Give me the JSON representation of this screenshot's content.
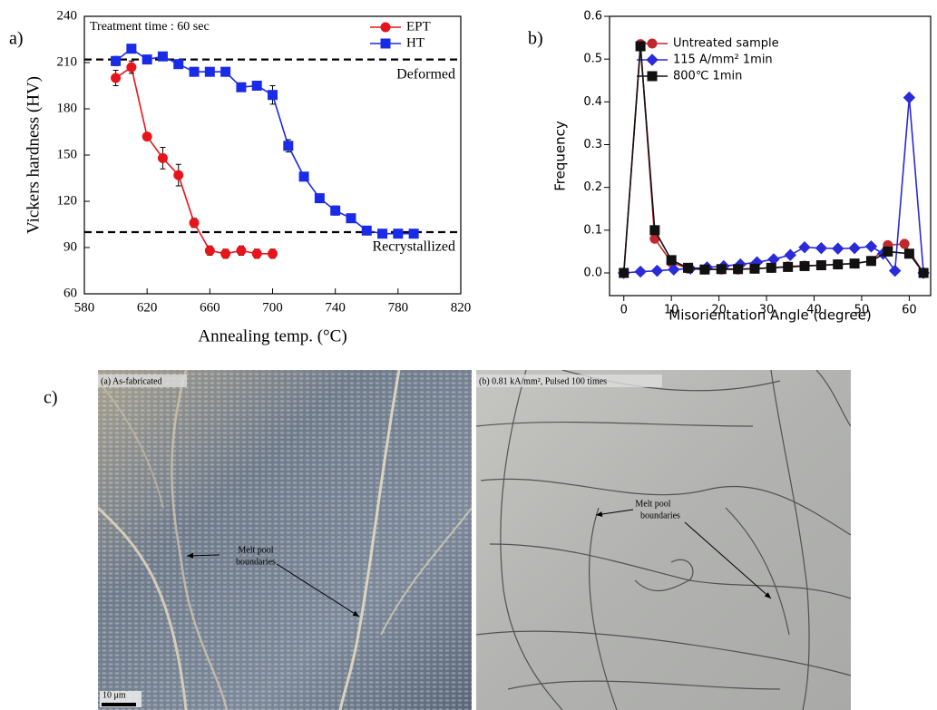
{
  "panel_labels": [
    "a)",
    "b)",
    "c)"
  ],
  "chart_data": [
    {
      "type": "line",
      "annotation": "Treatment time : 60 sec",
      "x_label": "Annealing temp. (°C)",
      "y_label": "Vickers hardness (HV)",
      "xlim": [
        580,
        820
      ],
      "xticks": [
        580,
        620,
        660,
        700,
        740,
        780,
        820
      ],
      "ylim": [
        60,
        240
      ],
      "yticks": [
        60,
        90,
        120,
        150,
        180,
        210,
        240
      ],
      "legend": "upper right",
      "reference_lines": [
        {
          "value": 212,
          "label": "Deformed"
        },
        {
          "value": 100,
          "label": "Recrystallized"
        }
      ],
      "series": [
        {
          "name": "EPT",
          "color": "#e8141b",
          "marker": "circle",
          "x": [
            600,
            610,
            620,
            630,
            640,
            650,
            660,
            670,
            680,
            690,
            700
          ],
          "values": [
            200,
            207,
            162,
            148,
            137,
            106,
            88,
            86,
            88,
            86,
            86
          ],
          "errors": [
            5,
            4,
            2,
            7,
            7,
            3,
            3,
            3,
            3,
            3,
            3
          ]
        },
        {
          "name": "HT",
          "color": "#1a2be8",
          "marker": "square",
          "x": [
            600,
            610,
            620,
            630,
            640,
            650,
            660,
            670,
            680,
            690,
            700,
            710,
            720,
            730,
            740,
            750,
            760,
            770,
            780,
            790
          ],
          "values": [
            211,
            219,
            212,
            214,
            209,
            204,
            204,
            204,
            194,
            195,
            189,
            156,
            136,
            122,
            114,
            109,
            101,
            99,
            99,
            99
          ],
          "errors": [
            3,
            2,
            2,
            2,
            2,
            2,
            2,
            2,
            2,
            2,
            6,
            4,
            2,
            2,
            3,
            2,
            2,
            2,
            2,
            2
          ]
        }
      ]
    },
    {
      "type": "line",
      "x_label": "Misorientation Angle (degree)",
      "y_label": "Frequency",
      "xlim": [
        -3,
        64.5
      ],
      "xticks": [
        0,
        10,
        20,
        30,
        40,
        50,
        60
      ],
      "ylim": [
        -0.053,
        0.6
      ],
      "yticks": [
        {
          "value": 0,
          "label": "0.0"
        },
        0.1,
        0.2,
        0.3,
        0.4,
        0.5,
        0.6
      ],
      "legend": "upper left",
      "series": [
        {
          "name": "Untreated sample",
          "color": "#c0282d",
          "marker": "circle",
          "x": [
            0,
            3.5,
            6.5,
            10,
            13.5,
            17,
            20.5,
            24,
            27.5,
            31,
            34.5,
            38,
            41.5,
            45,
            48.5,
            52,
            55.5,
            59,
            63
          ],
          "values": [
            0,
            0.535,
            0.08,
            0.025,
            0.01,
            0.008,
            0.008,
            0.008,
            0.01,
            0.012,
            0.015,
            0.017,
            0.018,
            0.02,
            0.022,
            0.028,
            0.065,
            0.068,
            0
          ]
        },
        {
          "name": "115 A/mm² 1min",
          "color": "#2a2ad8",
          "marker": "diamond",
          "x": [
            0,
            3.5,
            7,
            10.5,
            14,
            17.5,
            21,
            24.5,
            28,
            31.5,
            35,
            38,
            41.5,
            45,
            48.5,
            52,
            54.5,
            57,
            60,
            63
          ],
          "values": [
            0,
            0.003,
            0.005,
            0.008,
            0.01,
            0.013,
            0.016,
            0.02,
            0.025,
            0.032,
            0.042,
            0.06,
            0.058,
            0.057,
            0.058,
            0.062,
            0.045,
            0.005,
            0.41,
            0
          ]
        },
        {
          "name": "800℃    1min",
          "color": "#111111",
          "marker": "square",
          "x": [
            0,
            3.5,
            6.5,
            10,
            13.5,
            17,
            20.5,
            24,
            27.5,
            31,
            34.5,
            38,
            41.5,
            45,
            48.5,
            52,
            55.5,
            60,
            63
          ],
          "values": [
            0,
            0.53,
            0.1,
            0.03,
            0.012,
            0.008,
            0.009,
            0.009,
            0.01,
            0.012,
            0.014,
            0.016,
            0.018,
            0.02,
            0.022,
            0.028,
            0.05,
            0.045,
            0
          ]
        }
      ]
    }
  ],
  "micrographs": [
    {
      "label": "(a) As-fabricated",
      "annotation": [
        "Melt pool",
        "boundaries"
      ],
      "scale_bar": "10 μm"
    },
    {
      "label": "(b) 0.81 kA/mm², Pulsed 100 times",
      "annotation": [
        "Melt pool",
        "boundaries"
      ]
    }
  ]
}
